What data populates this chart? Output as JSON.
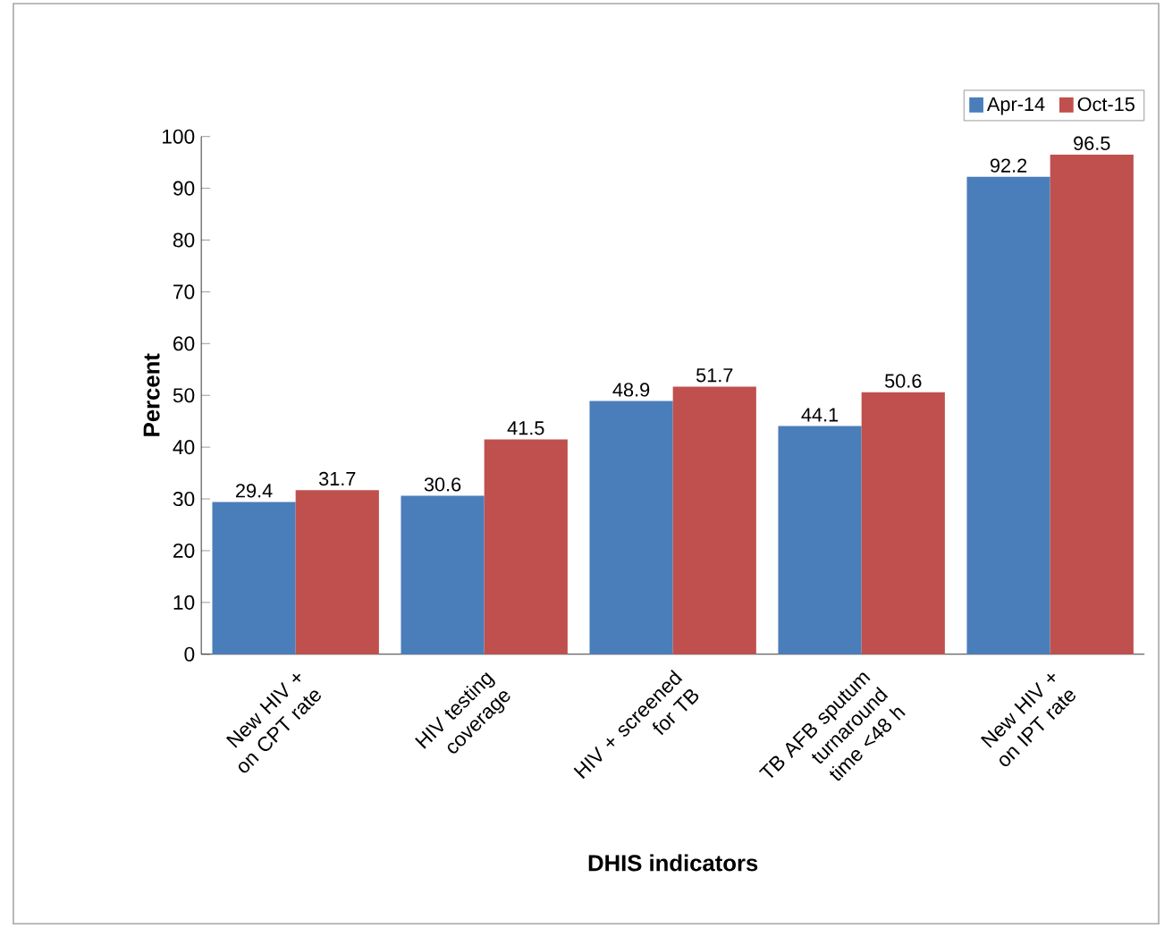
{
  "chart_data": {
    "type": "bar",
    "xlabel": "DHIS indicators",
    "ylabel": "Percent",
    "categories": [
      "New HIV + on CPT rate",
      "HIV testing coverage",
      "HIV + screened for TB",
      "TB AFB sputum turnaround time <48 h",
      "New HIV + on IPT rate"
    ],
    "series": [
      {
        "name": "Apr-14",
        "color": "#4a7ebb",
        "values": [
          29.4,
          30.6,
          48.9,
          44.1,
          92.2
        ]
      },
      {
        "name": "Oct-15",
        "color": "#c0504d",
        "values": [
          31.7,
          41.5,
          51.7,
          50.6,
          96.5
        ]
      }
    ],
    "ylim": [
      0,
      100
    ],
    "yticks": [
      0,
      10,
      20,
      30,
      40,
      50,
      60,
      70,
      80,
      90,
      100
    ],
    "data_labels": true,
    "legend": "top right",
    "grid": false
  }
}
